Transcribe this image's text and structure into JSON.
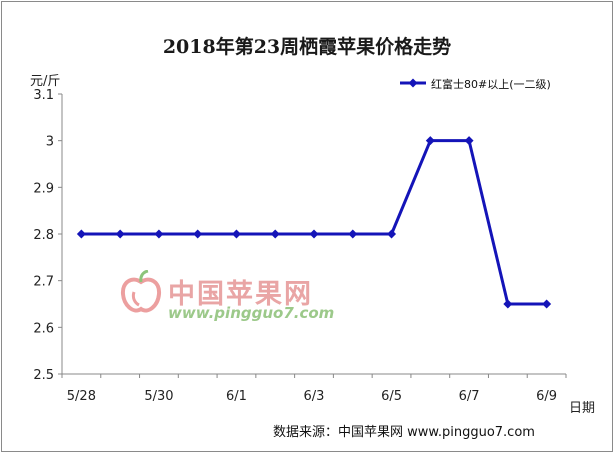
{
  "chart_data": {
    "type": "line",
    "title": "2018年第23周栖霞苹果价格走势",
    "ylabel": "元/斤",
    "xlabel": "日期",
    "x": [
      "5/28",
      "5/29",
      "5/30",
      "5/31",
      "6/1",
      "6/2",
      "6/3",
      "6/4",
      "6/5",
      "6/6",
      "6/7",
      "6/8",
      "6/9"
    ],
    "x_tick_labels": [
      "5/28",
      "5/30",
      "6/1",
      "6/3",
      "6/5",
      "6/7",
      "6/9"
    ],
    "y_ticks": [
      "2.5",
      "2.6",
      "2.7",
      "2.8",
      "2.9",
      "3",
      "3.1"
    ],
    "ylim": [
      2.5,
      3.1
    ],
    "grid": false,
    "legend_position": "top-right",
    "series": [
      {
        "name": "红富士80#以上(一二级)",
        "values": [
          2.8,
          2.8,
          2.8,
          2.8,
          2.8,
          2.8,
          2.8,
          2.8,
          2.8,
          3.0,
          3.0,
          2.65,
          2.65
        ],
        "color": "#1414b8"
      }
    ]
  },
  "source": "数据来源：中国苹果网 www.pingguo7.com",
  "watermark": {
    "text": "中国苹果网",
    "url": "www.pingguo7.com"
  }
}
